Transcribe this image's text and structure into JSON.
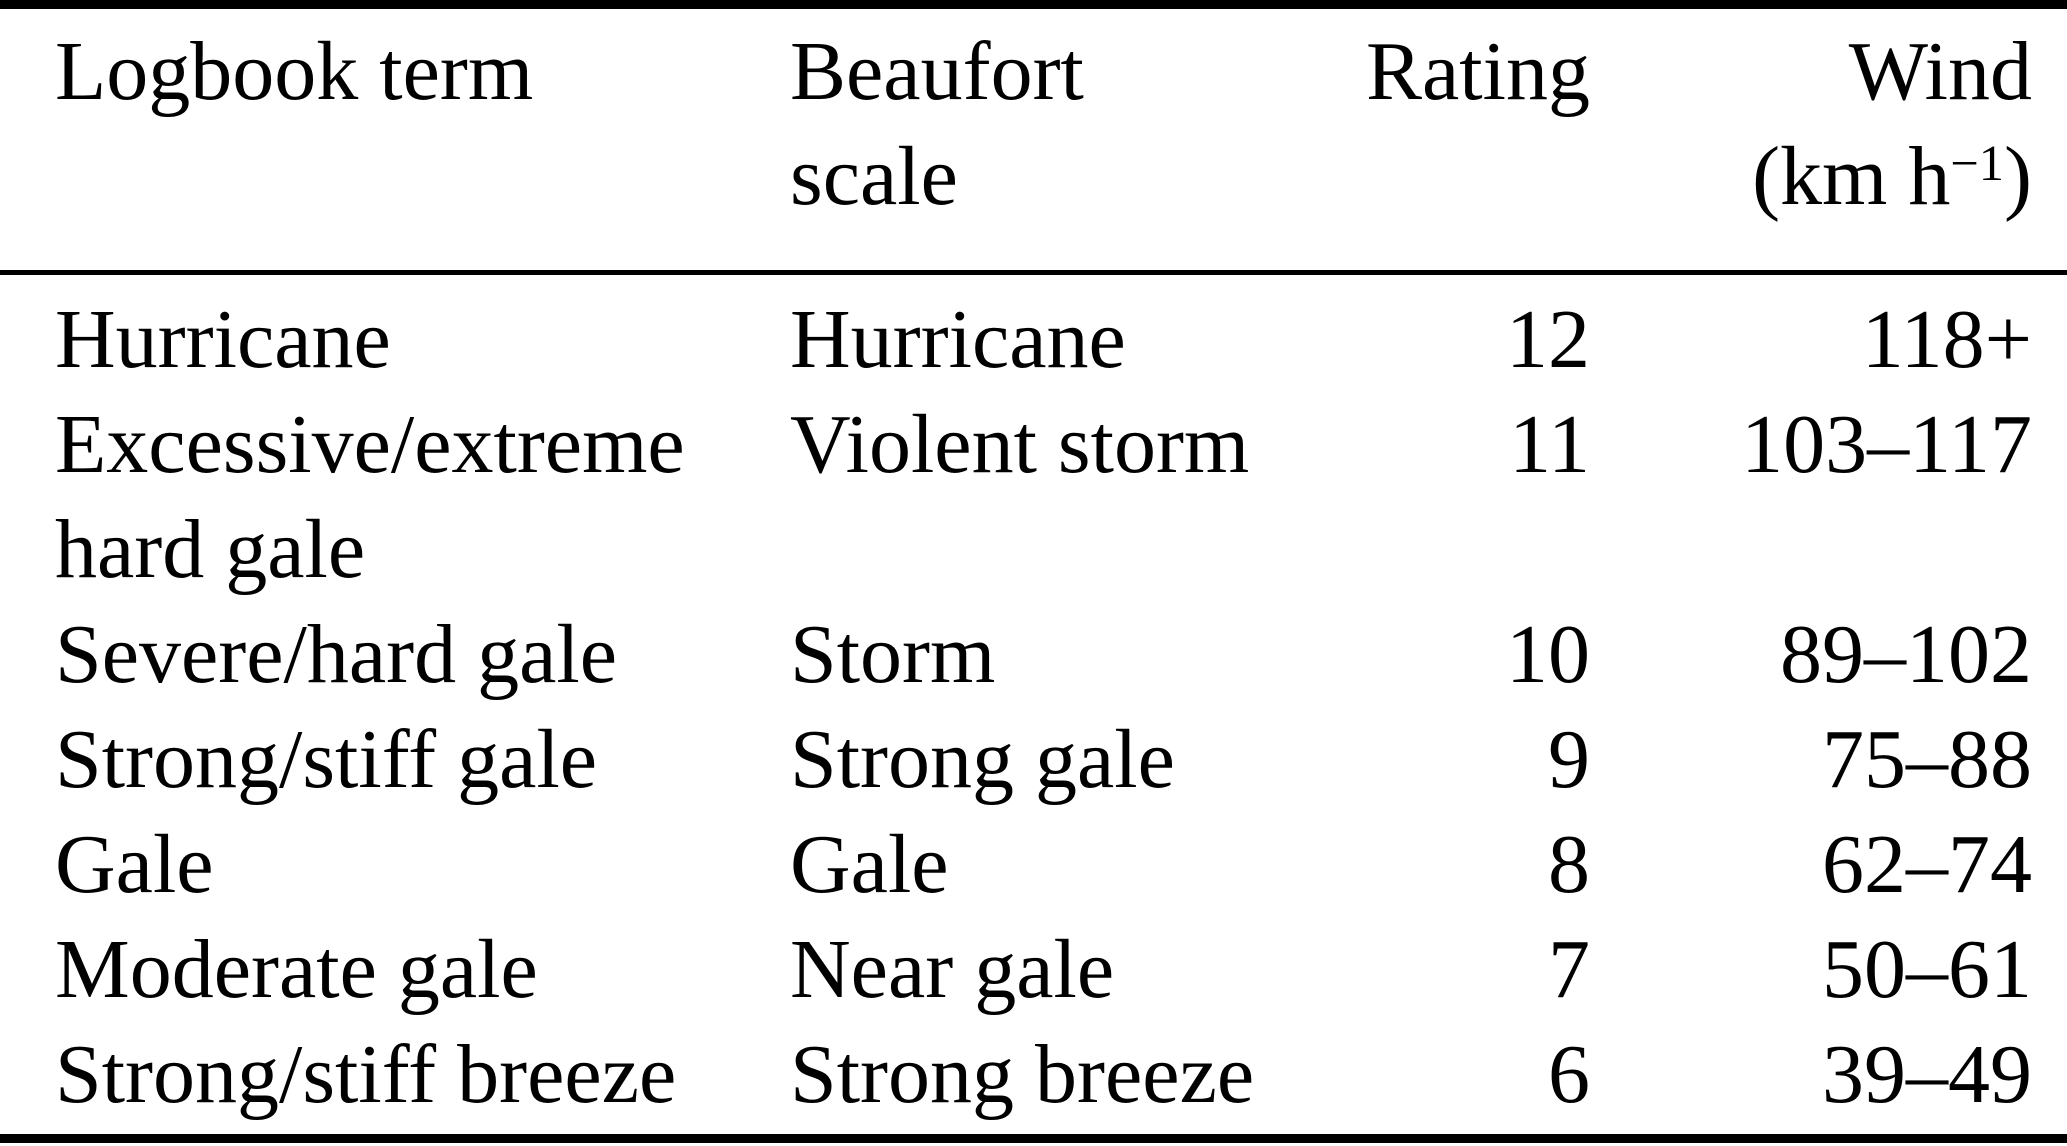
{
  "table": {
    "title_semantic": "Logbook wind terms converted to Beaufort scale and wind speed",
    "colors": {
      "background": "#ffffff",
      "text": "#000000",
      "rules": "#000000"
    },
    "header": {
      "logbook": "Logbook term",
      "beaufort_line1": "Beaufort",
      "beaufort_line2": "scale",
      "rating": "Rating",
      "wind_line1": "Wind",
      "wind_unit_open": "(km h",
      "wind_unit_sup": "−1",
      "wind_unit_close": ")"
    },
    "rows": [
      {
        "logbook": "Hurricane",
        "beaufort": "Hurricane",
        "rating": "12",
        "wind": "118+"
      },
      {
        "logbook": "Excessive/extreme hard gale",
        "beaufort": "Violent storm",
        "rating": "11",
        "wind": "103–117"
      },
      {
        "logbook": "Severe/hard gale",
        "beaufort": "Storm",
        "rating": "10",
        "wind": "89–102"
      },
      {
        "logbook": "Strong/stiff gale",
        "beaufort": "Strong gale",
        "rating": "9",
        "wind": "75–88"
      },
      {
        "logbook": "Gale",
        "beaufort": "Gale",
        "rating": "8",
        "wind": "62–74"
      },
      {
        "logbook": "Moderate gale",
        "beaufort": "Near gale",
        "rating": "7",
        "wind": "50–61"
      },
      {
        "logbook": "Strong/stiff breeze",
        "beaufort": "Strong breeze",
        "rating": "6",
        "wind": "39–49"
      }
    ]
  }
}
